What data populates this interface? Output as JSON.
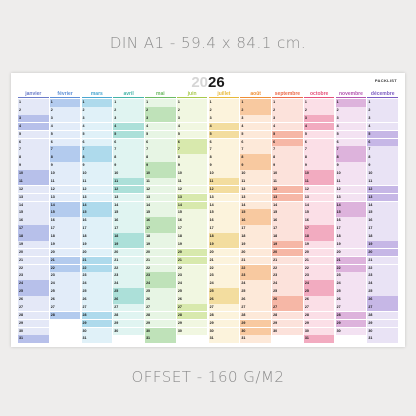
{
  "captions": {
    "top": "DIN A1 - 59.4 x 84.1 cm.",
    "bottom": "OFFSET - 160 G/M2"
  },
  "poster": {
    "year_ghost": "20",
    "year_main": "26",
    "brand": "PACKLIST",
    "months": [
      {
        "name": "janvier",
        "color": "#6b7cc9",
        "light": "#e4e8f7",
        "dark": "#b7c0ea",
        "days": 31,
        "start": 3
      },
      {
        "name": "février",
        "color": "#5d8fd6",
        "light": "#e2ecf9",
        "dark": "#b3cbee",
        "days": 28,
        "start": 6
      },
      {
        "name": "mars",
        "color": "#4aa7d1",
        "light": "#e0f1f8",
        "dark": "#aedaec",
        "days": 31,
        "start": 6
      },
      {
        "name": "avril",
        "color": "#45b4a8",
        "light": "#e0f4f1",
        "dark": "#ace0d9",
        "days": 30,
        "start": 2
      },
      {
        "name": "mai",
        "color": "#6cba62",
        "light": "#e7f5e4",
        "dark": "#bfe2b9",
        "days": 31,
        "start": 4
      },
      {
        "name": "juin",
        "color": "#a8c94c",
        "light": "#f1f7e1",
        "dark": "#d8e9ad",
        "days": 30,
        "start": 0
      },
      {
        "name": "juillet",
        "color": "#e8b93a",
        "light": "#fcf3dc",
        "dark": "#f3dd9f",
        "days": 31,
        "start": 2
      },
      {
        "name": "août",
        "color": "#ef8f36",
        "light": "#fde9d9",
        "dark": "#f8c9a0",
        "days": 31,
        "start": 5
      },
      {
        "name": "septembre",
        "color": "#ec6a4a",
        "light": "#fce2db",
        "dark": "#f6b7a6",
        "days": 30,
        "start": 1
      },
      {
        "name": "octobre",
        "color": "#e5517a",
        "light": "#fbdfe7",
        "dark": "#f2abc0",
        "days": 31,
        "start": 3
      },
      {
        "name": "novembre",
        "color": "#b356b0",
        "light": "#f3e2f2",
        "dark": "#ddb3dc",
        "days": 30,
        "start": 6
      },
      {
        "name": "décembre",
        "color": "#7c5cc2",
        "light": "#e9e3f5",
        "dark": "#c6b7e6",
        "days": 31,
        "start": 1
      }
    ]
  }
}
